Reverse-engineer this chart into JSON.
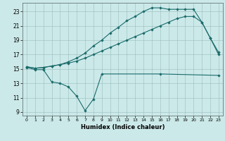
{
  "xlabel": "Humidex (Indice chaleur)",
  "bg_color": "#cce9e9",
  "grid_color": "#99bbbb",
  "line_color": "#1a6b6b",
  "xlim": [
    -0.5,
    23.5
  ],
  "ylim": [
    8.5,
    24.2
  ],
  "xticks": [
    0,
    1,
    2,
    3,
    4,
    5,
    6,
    7,
    8,
    9,
    10,
    11,
    12,
    13,
    14,
    15,
    16,
    17,
    18,
    19,
    20,
    21,
    22,
    23
  ],
  "yticks": [
    9,
    11,
    13,
    15,
    17,
    19,
    21,
    23
  ],
  "line1_x": [
    0,
    1,
    2,
    3,
    4,
    5,
    6,
    7,
    8,
    9,
    16,
    23
  ],
  "line1_y": [
    15.2,
    14.9,
    14.9,
    13.2,
    13.0,
    12.5,
    11.2,
    9.2,
    10.8,
    14.3,
    14.3,
    14.1
  ],
  "line2_x": [
    0,
    1,
    2,
    3,
    4,
    5,
    6,
    7,
    8,
    9,
    10,
    11,
    12,
    13,
    14,
    15,
    16,
    17,
    18,
    19,
    20,
    21,
    22,
    23
  ],
  "line2_y": [
    15.3,
    15.1,
    15.2,
    15.4,
    15.6,
    15.8,
    16.1,
    16.5,
    17.0,
    17.5,
    18.0,
    18.5,
    19.0,
    19.5,
    20.0,
    20.5,
    21.0,
    21.5,
    22.0,
    22.3,
    22.3,
    21.5,
    19.3,
    17.0
  ],
  "line3_x": [
    0,
    1,
    2,
    3,
    4,
    5,
    6,
    7,
    8,
    9,
    10,
    11,
    12,
    13,
    14,
    15,
    16,
    17,
    18,
    19,
    20,
    21,
    22,
    23
  ],
  "line3_y": [
    15.3,
    15.1,
    15.2,
    15.4,
    15.6,
    16.0,
    16.5,
    17.2,
    18.2,
    19.0,
    20.0,
    20.8,
    21.7,
    22.3,
    23.0,
    23.5,
    23.5,
    23.3,
    23.3,
    23.3,
    23.3,
    21.5,
    19.3,
    17.3
  ],
  "line1_markers_x": [
    0,
    1,
    2,
    3,
    4,
    5,
    6,
    7,
    8,
    9,
    16,
    23
  ],
  "line1_markers_y": [
    15.2,
    14.9,
    14.9,
    13.2,
    13.0,
    12.5,
    11.2,
    9.2,
    10.8,
    14.3,
    14.3,
    14.1
  ],
  "line2_markers_x": [
    0,
    1,
    2,
    4,
    7,
    9,
    11,
    13,
    15,
    17,
    19,
    21,
    22,
    23
  ],
  "line2_markers_y": [
    15.3,
    15.1,
    15.2,
    15.6,
    16.5,
    17.5,
    18.5,
    19.5,
    20.5,
    21.5,
    22.3,
    21.5,
    19.3,
    17.0
  ],
  "line3_markers_x": [
    0,
    2,
    4,
    7,
    9,
    11,
    13,
    14,
    15,
    16,
    17,
    18,
    19,
    20,
    21,
    22,
    23
  ],
  "line3_markers_y": [
    15.3,
    15.2,
    15.6,
    17.2,
    19.0,
    20.8,
    22.3,
    23.0,
    23.5,
    23.5,
    23.3,
    23.3,
    23.3,
    23.3,
    21.5,
    19.3,
    17.3
  ]
}
